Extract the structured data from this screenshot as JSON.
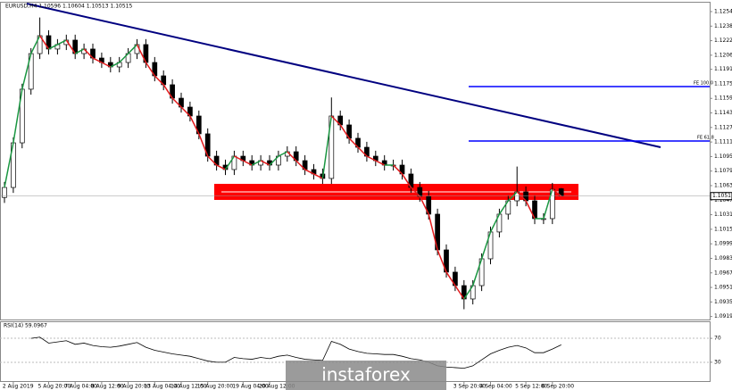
{
  "chart_data": [
    {
      "type": "candlestick",
      "title": "EURUSD,H4 1.10596 1.10604 1.10513 1.10515",
      "x": [
        null,
        "2 Aug 2019",
        null,
        null,
        null,
        "5 Aug 20:00",
        null,
        null,
        "7 Aug 04:00",
        null,
        null,
        "8 Aug 12:00",
        null,
        null,
        "9 Aug 20:00",
        null,
        null,
        "13 Aug 04:00",
        null,
        null,
        "14 Aug 12:00",
        null,
        null,
        "15 Aug 20:00",
        null,
        null,
        null,
        "19 Aug 04:00",
        null,
        null,
        "20 Aug 12:00",
        null,
        null,
        null,
        null,
        null,
        null,
        null,
        null,
        null,
        null,
        null,
        null,
        null,
        null,
        null,
        null,
        null,
        null,
        null,
        null,
        null,
        "3 Sep 20:00",
        null,
        null,
        "4 Sep 04:00",
        null,
        null,
        null,
        "5 Sep 12:00",
        null,
        null,
        "6 Sep 20:00",
        null
      ],
      "open": [
        1.105,
        1.1061,
        1.11101,
        1.11691,
        1.12083,
        1.1228,
        1.12133,
        1.12182,
        1.12231,
        1.12083,
        1.12133,
        1.12034,
        1.11985,
        1.11936,
        1.11985,
        1.12083,
        1.12182,
        1.11985,
        1.11838,
        1.1174,
        1.11592,
        1.11494,
        1.11396,
        1.112,
        1.10954,
        1.10856,
        1.10807,
        1.10954,
        1.10905,
        1.10856,
        1.10905,
        1.10856,
        1.10954,
        1.11003,
        1.10905,
        1.10807,
        1.10758,
        1.10709,
        1.11396,
        1.11298,
        1.11151,
        1.11052,
        1.10954,
        1.10905,
        1.10856,
        1.10856,
        1.10758,
        1.1061,
        1.10512,
        1.10316,
        1.09923,
        1.09678,
        1.0953,
        1.09383,
        1.0953,
        1.09825,
        1.1012,
        1.10316,
        1.10463,
        1.10561,
        1.10463,
        1.10267,
        1.10267,
        1.10596
      ],
      "high": [
        1.1067,
        1.11161,
        1.11751,
        1.12143,
        1.1248,
        1.1234,
        1.12242,
        1.12291,
        1.12291,
        1.12193,
        1.12193,
        1.12094,
        1.12045,
        1.12045,
        1.12143,
        1.12242,
        1.12242,
        1.12045,
        1.11898,
        1.118,
        1.11652,
        1.11554,
        1.11456,
        1.1126,
        1.11014,
        1.10916,
        1.11014,
        1.11014,
        1.10965,
        1.10965,
        1.10965,
        1.11014,
        1.11063,
        1.11063,
        1.10965,
        1.10867,
        1.10818,
        1.116,
        1.11456,
        1.11358,
        1.11211,
        1.11112,
        1.11014,
        1.10965,
        1.10916,
        1.10916,
        1.10818,
        1.1067,
        1.10572,
        1.10376,
        1.09983,
        1.09738,
        1.0959,
        1.0959,
        1.09885,
        1.1018,
        1.10376,
        1.10523,
        1.1084,
        1.10621,
        1.10523,
        1.10327,
        1.1066,
        1.10604
      ],
      "low": [
        1.1044,
        1.1055,
        1.11041,
        1.11631,
        1.12023,
        1.12073,
        1.12073,
        1.12122,
        1.12023,
        1.12023,
        1.11974,
        1.11925,
        1.11876,
        1.11876,
        1.11925,
        1.12023,
        1.11925,
        1.11778,
        1.1168,
        1.11532,
        1.11434,
        1.11336,
        1.1114,
        1.10894,
        1.10796,
        1.10747,
        1.10747,
        1.10845,
        1.10796,
        1.10796,
        1.10796,
        1.10796,
        1.10894,
        1.10845,
        1.10747,
        1.10698,
        1.10649,
        1.10649,
        1.11238,
        1.11091,
        1.10992,
        1.10894,
        1.10845,
        1.10796,
        1.10796,
        1.10698,
        1.1055,
        1.10452,
        1.10256,
        1.09863,
        1.09618,
        1.0947,
        1.0927,
        1.09323,
        1.0947,
        1.09765,
        1.1006,
        1.10256,
        1.10403,
        1.10403,
        1.10207,
        1.10207,
        1.10207,
        1.10513
      ],
      "close": [
        1.1061,
        1.11101,
        1.11691,
        1.12083,
        1.1228,
        1.12133,
        1.12182,
        1.12231,
        1.12083,
        1.12133,
        1.12034,
        1.11985,
        1.11936,
        1.11985,
        1.12083,
        1.12182,
        1.11985,
        1.11838,
        1.1174,
        1.11592,
        1.11494,
        1.11396,
        1.112,
        1.10954,
        1.10856,
        1.10807,
        1.10954,
        1.10905,
        1.10856,
        1.10905,
        1.10856,
        1.10954,
        1.11003,
        1.10905,
        1.10807,
        1.10758,
        1.10709,
        1.11396,
        1.11298,
        1.11151,
        1.11052,
        1.10954,
        1.10905,
        1.10856,
        1.10856,
        1.10758,
        1.1061,
        1.10512,
        1.10316,
        1.09923,
        1.09678,
        1.0953,
        1.09383,
        1.0953,
        1.09825,
        1.1012,
        1.10316,
        1.10463,
        1.10561,
        1.10463,
        1.10267,
        1.10267,
        1.1059,
        1.10515
      ],
      "ylim": [
        1.09157,
        1.12643
      ],
      "yticks": [
        {
          "value": 1.12545,
          "label": "1.12545"
        },
        {
          "value": 1.12385,
          "label": "1.12385"
        },
        {
          "value": 1.12225,
          "label": "1.12225"
        },
        {
          "value": 1.12065,
          "label": "1.12065"
        },
        {
          "value": 1.1191,
          "label": "1.11910"
        },
        {
          "value": 1.1175,
          "label": "1.11750"
        },
        {
          "value": 1.1159,
          "label": "1.11590"
        },
        {
          "value": 1.1143,
          "label": "1.11430"
        },
        {
          "value": 1.1127,
          "label": "1.11270"
        },
        {
          "value": 1.1111,
          "label": "1.11110"
        },
        {
          "value": 1.1095,
          "label": "1.10950"
        },
        {
          "value": 1.1079,
          "label": "1.10790"
        },
        {
          "value": 1.1063,
          "label": "1.10630"
        },
        {
          "value": 1.1047,
          "label": "1.10470"
        },
        {
          "value": 1.1031,
          "label": "1.10310"
        },
        {
          "value": 1.1015,
          "label": "1.10150"
        },
        {
          "value": 1.0999,
          "label": "1.09990"
        },
        {
          "value": 1.0983,
          "label": "1.09830"
        },
        {
          "value": 1.0967,
          "label": "1.09670"
        },
        {
          "value": 1.0951,
          "label": "1.09510"
        },
        {
          "value": 1.0935,
          "label": "1.09350"
        },
        {
          "value": 1.0919,
          "label": "1.09190"
        }
      ],
      "annotations": [
        "FE 100.0",
        "FE 61.8"
      ]
    },
    {
      "type": "line",
      "title": "RSI(14) 59.0967",
      "values": [
        null,
        null,
        null,
        70,
        72,
        62,
        64,
        66,
        60,
        62,
        58,
        56,
        55,
        57,
        60,
        63,
        55,
        50,
        47,
        44,
        42,
        40,
        36,
        32,
        30,
        30,
        38,
        36,
        35,
        38,
        36,
        40,
        42,
        38,
        35,
        34,
        33,
        65,
        60,
        52,
        48,
        45,
        44,
        43,
        43,
        40,
        36,
        34,
        30,
        24,
        22,
        21,
        20,
        24,
        34,
        44,
        50,
        55,
        58,
        54,
        46,
        46,
        52,
        59.0967
      ],
      "ylim": [
        0,
        100
      ],
      "yticks": [
        70,
        30
      ]
    }
  ],
  "logo": "instaforex"
}
